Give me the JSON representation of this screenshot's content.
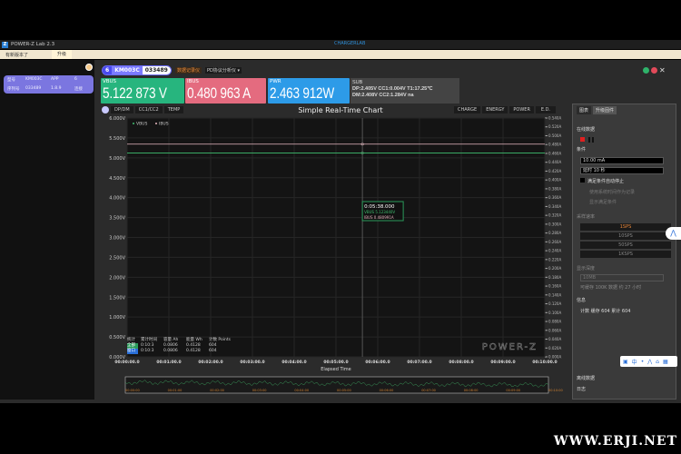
{
  "window": {
    "title": "POWER-Z Lab 2.3",
    "brand": "CHARGERLAB",
    "close": "✕"
  },
  "update": {
    "message": "有新版本了",
    "button": "升级"
  },
  "device": {
    "rows": [
      [
        "型号",
        "KM003C",
        "APP",
        "6"
      ],
      [
        "序列号",
        "033489",
        "1.8.9",
        "连接"
      ]
    ],
    "badge": {
      "index": "6",
      "model": "KM003C",
      "serial": "033489"
    },
    "record_label": "数据记录仪",
    "pd_label": "PD协议分析仪 ▾"
  },
  "readouts": {
    "vbus": {
      "label": "VBUS",
      "value": "5.122 873 V",
      "color": "#27b57e"
    },
    "ibus": {
      "label": "IBUS",
      "value": "0.480 963 A",
      "color": "#e46b7f"
    },
    "pwr": {
      "label": "PWR",
      "value": "2.463 912W",
      "color": "#2d9be8"
    },
    "sub": {
      "label": "SUB",
      "line1": "DP:2.405V  CC1:0.004V T1:17.25℃",
      "line2": "DM:2.408V  CC2:1.284V na"
    }
  },
  "chart_tabs": [
    "DP/DM",
    "CC1/CC2",
    "TEMP"
  ],
  "right_tabs": [
    "CHARGE",
    "ENERGY",
    "POWER",
    "E.D."
  ],
  "chart_data": {
    "type": "line",
    "title": "Simple Real-Time Chart",
    "xlabel": "Elapsed Time",
    "x_ticks": [
      "00:00:00.0",
      "00:01:00.0",
      "00:02:00.0",
      "00:03:00.0",
      "00:04:00.0",
      "00:05:00.0",
      "00:06:00.0",
      "00:07:00.0",
      "00:08:00.0",
      "00:09:00.0",
      "00:10:00.0"
    ],
    "xlim_minutes": [
      0,
      10
    ],
    "ylim_left": [
      0,
      6
    ],
    "ylim_right": [
      0,
      0.54
    ],
    "left_unit": "V",
    "right_unit": "A",
    "left_step": 0.5,
    "right_step": 0.02,
    "legend_placement": "top-left",
    "series": [
      {
        "name": "VBUS",
        "axis": "left",
        "color": "#3fbf6f",
        "values_const": 5.1229
      },
      {
        "name": "IBUS",
        "axis": "right",
        "color": "#e8b7c0",
        "values_const": 0.481
      }
    ],
    "tooltip": {
      "time": "0:05:38.000",
      "minute": 5.633,
      "vbus": "VBUS   5.123440V",
      "ibus": "IBUS   0.480991A"
    },
    "overview_ticks": [
      "00:00:00",
      "00:01:00",
      "00:02:00",
      "00:03:00",
      "00:04:00",
      "00:05:00",
      "00:06:00",
      "00:07:00",
      "00:08:00",
      "00:09:00",
      "00:10:00"
    ],
    "watermark": "POWER-Z"
  },
  "stats": {
    "headers": [
      "统计",
      "累计时间",
      "容量 Ah",
      "能量 Wh",
      "计数 Points"
    ],
    "rows": [
      [
        "全部",
        "0:10:3",
        "0.0806",
        "0.4128",
        "604"
      ],
      [
        "窗口",
        "0:10:3",
        "0.0806",
        "0.4128",
        "604"
      ]
    ]
  },
  "panel": {
    "tabs": [
      "图表",
      "升级固件"
    ],
    "online": "在线数据",
    "condition": "条件",
    "current": "10.00 mA",
    "delay": "延时 10 秒",
    "auto_stop": "满足条件自动停止",
    "opt1": "使用系统时间作为记录",
    "opt2": "显示满足条件",
    "rate_label": "采样速率",
    "rates": [
      "1SPS",
      "10SPS",
      "50SPS",
      "1KSPS"
    ],
    "depth_label": "显示深度",
    "depth": "10MB",
    "depth_note": "可缓存 100K 数据 约 27 小时",
    "info_label": "信息",
    "info": "计数 缓存 604 累计 604",
    "offline": "离线数据",
    "log": "日志"
  },
  "watermark": "WWW.ERJI.NET"
}
